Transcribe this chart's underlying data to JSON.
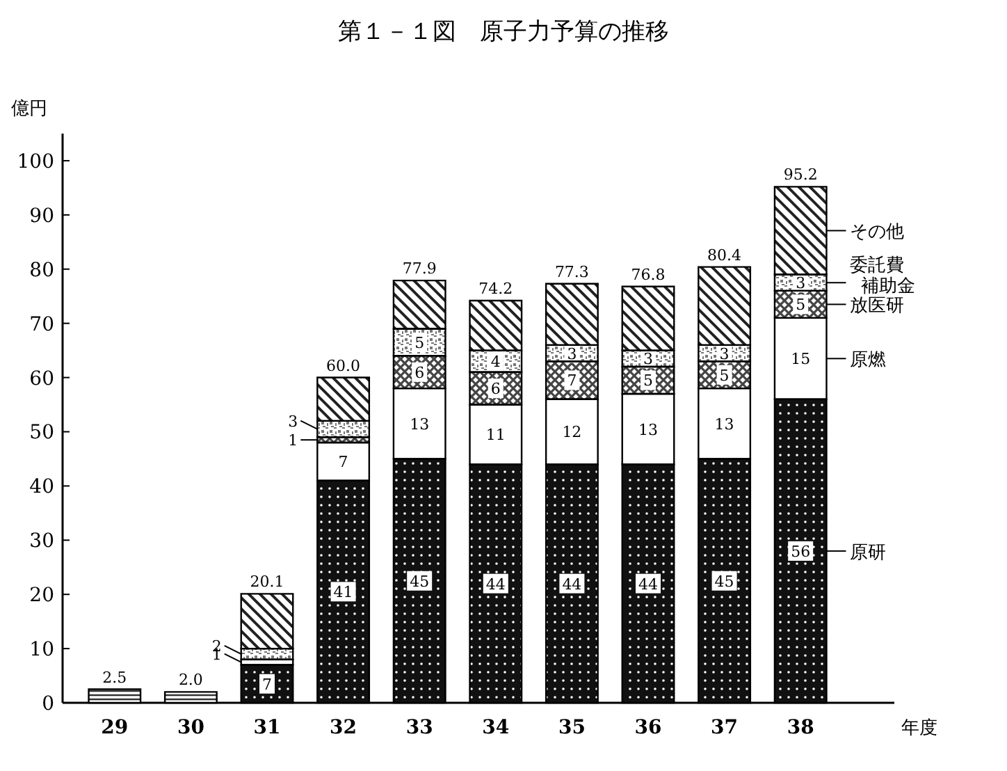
{
  "chart_data": {
    "type": "bar",
    "title": "第１－１図　原子力予算の推移",
    "ylabel": "億円",
    "xlabel": "年度",
    "stacked": true,
    "grid": false,
    "categories": [
      "29",
      "30",
      "31",
      "32",
      "33",
      "34",
      "35",
      "36",
      "37",
      "38"
    ],
    "ylim": [
      0,
      105
    ],
    "yticks": [
      0,
      10,
      20,
      30,
      40,
      50,
      60,
      70,
      80,
      90,
      100
    ],
    "series": [
      {
        "name": "原研",
        "color": "#111111",
        "values": [
          null,
          null,
          7,
          41,
          45,
          44,
          44,
          44,
          45,
          56
        ],
        "value_labels": [
          null,
          null,
          "7",
          "41",
          "45",
          "44",
          "44",
          "44",
          "45",
          "56"
        ]
      },
      {
        "name": "原燃",
        "color": "#ffffff",
        "values": [
          null,
          null,
          1,
          7,
          13,
          11,
          12,
          13,
          13,
          15
        ],
        "value_labels": [
          null,
          null,
          "1",
          "7",
          "13",
          "11",
          "12",
          "13",
          "13",
          "15"
        ]
      },
      {
        "name": "放医研",
        "color": "#444444",
        "values": [
          null,
          null,
          null,
          1,
          6,
          6,
          7,
          5,
          5,
          5
        ],
        "value_labels": [
          null,
          null,
          null,
          "1",
          "6",
          "6",
          "7",
          "5",
          "5",
          "5"
        ]
      },
      {
        "name": "委託費補助金",
        "color": "#777777",
        "values": [
          null,
          null,
          2,
          3,
          5,
          4,
          3,
          3,
          3,
          3
        ],
        "value_labels": [
          null,
          null,
          "2",
          "3",
          "5",
          "4",
          "3",
          "3",
          "3",
          "3"
        ]
      },
      {
        "name": "その他",
        "color": "#222222",
        "values": [
          null,
          null,
          10.1,
          8,
          8.9,
          9.2,
          11.3,
          11.8,
          14.4,
          16.2
        ]
      },
      {
        "color": "#333333",
        "values": [
          2.5,
          2.0,
          null,
          null,
          null,
          null,
          null,
          null,
          null,
          null
        ]
      }
    ],
    "totals": [
      "2.5",
      "2.0",
      "20.1",
      "60.0",
      "77.9",
      "74.2",
      "77.3",
      "76.8",
      "80.4",
      "95.2"
    ]
  }
}
